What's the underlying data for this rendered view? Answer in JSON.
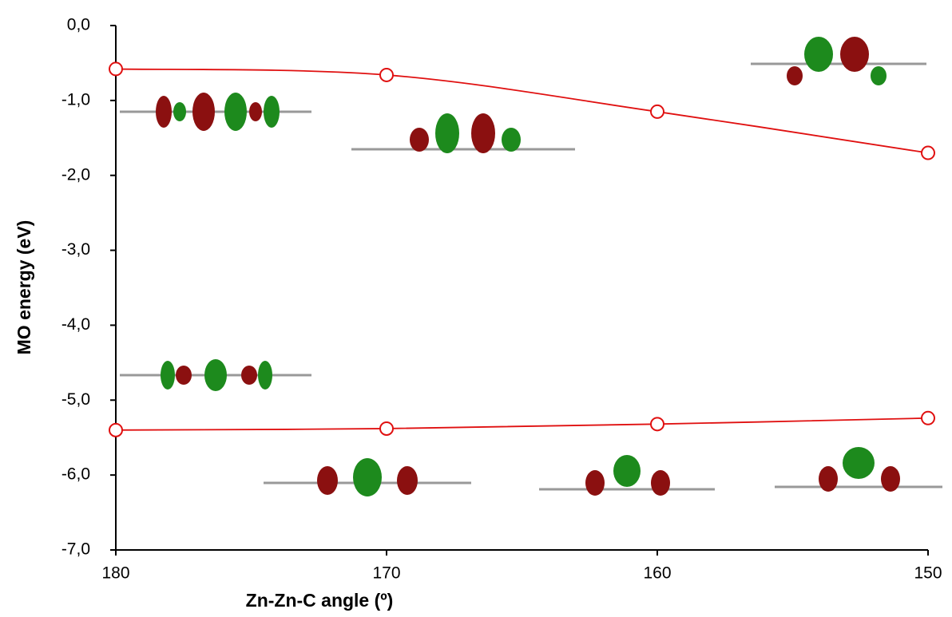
{
  "chart_data": {
    "type": "line",
    "x_label": "Zn-Zn-C angle (º)",
    "y_label": "MO energy (eV)",
    "x": [
      180,
      170,
      160,
      150
    ],
    "series": [
      {
        "color": "#e01010",
        "values": [
          -0.58,
          -0.66,
          -1.15,
          -1.7
        ]
      },
      {
        "color": "#e01010",
        "values": [
          -5.4,
          -5.38,
          -5.32,
          -5.24
        ]
      }
    ],
    "xlim": [
      180,
      150
    ],
    "xticks": [
      180,
      170,
      160,
      150
    ],
    "ylim": [
      -7,
      0
    ],
    "yticks": [
      {
        "value": 0,
        "label": "0,0"
      },
      {
        "value": -1,
        "label": "-1,0"
      },
      {
        "value": -2,
        "label": "-2,0"
      },
      {
        "value": -3,
        "label": "-3,0"
      },
      {
        "value": -4,
        "label": "-4,0"
      },
      {
        "value": -5,
        "label": "-5,0"
      },
      {
        "value": -6,
        "label": "-6,0"
      },
      {
        "value": -7,
        "label": "-7,0"
      }
    ]
  }
}
